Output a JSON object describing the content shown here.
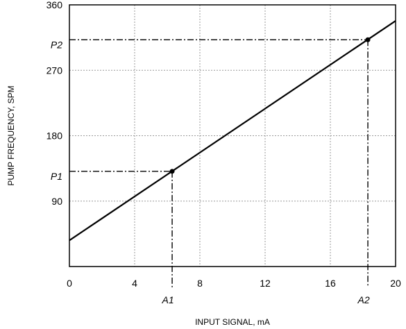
{
  "chart_data": {
    "type": "line",
    "title": "",
    "xlabel": "INPUT SIGNAL, mA",
    "ylabel": "PUMP FREQUENCY, SPM",
    "xlim": [
      0,
      20
    ],
    "ylim": [
      0,
      360
    ],
    "x_ticks": [
      0,
      4,
      8,
      12,
      16,
      20
    ],
    "y_ticks": [
      90,
      180,
      270,
      360
    ],
    "grid": true,
    "series": [
      {
        "x": [
          0,
          20
        ],
        "y": [
          36,
          338
        ]
      }
    ],
    "points": [
      {
        "x": 6.3,
        "y": 131,
        "x_label": "A1",
        "y_label": "P1"
      },
      {
        "x": 18.3,
        "y": 312,
        "x_label": "A2",
        "y_label": "P2"
      }
    ],
    "colors": {
      "line": "#000000",
      "grid": "#999999",
      "axis": "#000000"
    }
  }
}
